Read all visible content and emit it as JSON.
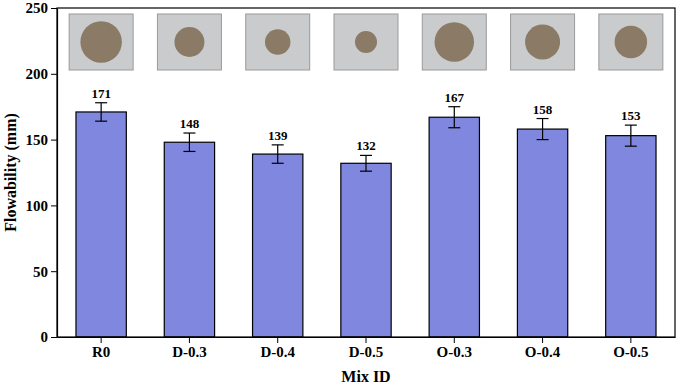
{
  "chart_data": {
    "type": "bar",
    "categories": [
      "R0",
      "D-0.3",
      "D-0.4",
      "D-0.5",
      "O-0.3",
      "O-0.4",
      "O-0.5"
    ],
    "values": [
      171,
      148,
      139,
      132,
      167,
      158,
      153
    ],
    "errors": [
      7,
      7,
      7,
      6,
      8,
      8,
      8
    ],
    "color": "#7f88de",
    "x_label": "Mix ID",
    "y_label": "Flowability (mm)",
    "ylim": [
      0,
      250
    ],
    "yticks": [
      0,
      50,
      100,
      150,
      200,
      250
    ],
    "data_labels": true
  }
}
